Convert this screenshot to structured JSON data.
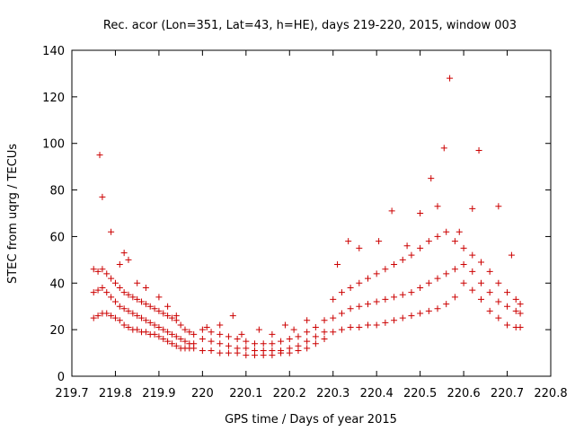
{
  "chart_data": {
    "type": "scatter",
    "title": "Rec. acor (Lon=351, Lat=43, h=HE), days 219-220, 2015, window 003",
    "xlabel": "GPS time / Days of year 2015",
    "ylabel": "STEC from uqrg / TECUs",
    "xlim": [
      219.7,
      220.8
    ],
    "ylim": [
      0,
      140
    ],
    "xticks": [
      "219.7",
      "219.8",
      "219.9",
      "220",
      "220.1",
      "220.2",
      "220.3",
      "220.4",
      "220.5",
      "220.6",
      "220.7",
      "220.8"
    ],
    "yticks": [
      "0",
      "20",
      "40",
      "60",
      "80",
      "100",
      "120",
      "140"
    ],
    "marker": "+",
    "color": "#cc0000",
    "grid": false,
    "series": [
      {
        "x": [
          219.75,
          219.76,
          219.77,
          219.78,
          219.79,
          219.8,
          219.81,
          219.82,
          219.83,
          219.84,
          219.85,
          219.86,
          219.87,
          219.88,
          219.89,
          219.9,
          219.91,
          219.92,
          219.93,
          219.94,
          219.95,
          219.96,
          219.97,
          219.98
        ],
        "y": [
          25,
          26,
          27,
          27,
          26,
          25,
          24,
          22,
          21,
          20,
          20,
          19,
          19,
          18,
          18,
          17,
          16,
          15,
          14,
          13,
          12,
          12,
          12,
          12
        ]
      },
      {
        "x": [
          219.75,
          219.76,
          219.77,
          219.78,
          219.79,
          219.8,
          219.81,
          219.82,
          219.83,
          219.84,
          219.85,
          219.86,
          219.87,
          219.88,
          219.89,
          219.9,
          219.91,
          219.92,
          219.93,
          219.94,
          219.95,
          219.96,
          219.97,
          219.98
        ],
        "y": [
          36,
          37,
          38,
          36,
          34,
          32,
          30,
          29,
          28,
          27,
          26,
          25,
          24,
          23,
          22,
          21,
          20,
          19,
          18,
          17,
          16,
          15,
          14,
          14
        ]
      },
      {
        "x": [
          219.75,
          219.76,
          219.77,
          219.78,
          219.79,
          219.8,
          219.81,
          219.82,
          219.83,
          219.84,
          219.85,
          219.86,
          219.87,
          219.88,
          219.89,
          219.9,
          219.91,
          219.92,
          219.93,
          219.94,
          219.95,
          219.96,
          219.97,
          219.98
        ],
        "y": [
          46,
          45,
          46,
          44,
          42,
          40,
          38,
          36,
          35,
          34,
          33,
          32,
          31,
          30,
          29,
          28,
          27,
          26,
          25,
          24,
          22,
          20,
          19,
          18
        ]
      },
      {
        "x": [
          219.764,
          219.77,
          219.79,
          219.81,
          219.82,
          219.83,
          219.85,
          219.87,
          219.9,
          219.92,
          219.94
        ],
        "y": [
          95,
          77,
          62,
          48,
          53,
          50,
          40,
          38,
          34,
          30,
          26
        ]
      },
      {
        "x": [
          220.0,
          220.02,
          220.04,
          220.06,
          220.08,
          220.1,
          220.12,
          220.14,
          220.16,
          220.18,
          220.2,
          220.22,
          220.24,
          220.26,
          220.28
        ],
        "y": [
          11,
          11,
          10,
          10,
          10,
          9,
          9,
          9,
          9,
          10,
          10,
          11,
          12,
          14,
          16
        ]
      },
      {
        "x": [
          220.0,
          220.02,
          220.04,
          220.06,
          220.08,
          220.1,
          220.12,
          220.14,
          220.16,
          220.18,
          220.2,
          220.22,
          220.24,
          220.26,
          220.28
        ],
        "y": [
          16,
          15,
          14,
          13,
          12,
          12,
          11,
          11,
          11,
          11,
          12,
          13,
          15,
          17,
          19
        ]
      },
      {
        "x": [
          220.0,
          220.02,
          220.04,
          220.06,
          220.08,
          220.1,
          220.12,
          220.14,
          220.16,
          220.18,
          220.2,
          220.22,
          220.24,
          220.26,
          220.28
        ],
        "y": [
          20,
          19,
          18,
          17,
          16,
          15,
          14,
          14,
          14,
          15,
          16,
          17,
          19,
          21,
          24
        ]
      },
      {
        "x": [
          220.01,
          220.04,
          220.07,
          220.09,
          220.13,
          220.16,
          220.19,
          220.21,
          220.24
        ],
        "y": [
          21,
          22,
          26,
          18,
          20,
          18,
          22,
          20,
          24
        ]
      },
      {
        "x": [
          220.3,
          220.32,
          220.34,
          220.36,
          220.38,
          220.4,
          220.42,
          220.44,
          220.46,
          220.48,
          220.5,
          220.52,
          220.54,
          220.56,
          220.58,
          220.6,
          220.62,
          220.64,
          220.66,
          220.68,
          220.7,
          220.72,
          220.73
        ],
        "y": [
          19,
          20,
          21,
          21,
          22,
          22,
          23,
          24,
          25,
          26,
          27,
          28,
          29,
          31,
          34,
          40,
          37,
          33,
          28,
          25,
          22,
          21,
          21
        ]
      },
      {
        "x": [
          220.3,
          220.32,
          220.34,
          220.36,
          220.38,
          220.4,
          220.42,
          220.44,
          220.46,
          220.48,
          220.5,
          220.52,
          220.54,
          220.56,
          220.58,
          220.6,
          220.62,
          220.64,
          220.66,
          220.68,
          220.7,
          220.72,
          220.73
        ],
        "y": [
          25,
          27,
          29,
          30,
          31,
          32,
          33,
          34,
          35,
          36,
          38,
          40,
          42,
          44,
          46,
          48,
          45,
          40,
          36,
          32,
          30,
          28,
          27
        ]
      },
      {
        "x": [
          220.3,
          220.32,
          220.34,
          220.36,
          220.38,
          220.4,
          220.42,
          220.44,
          220.46,
          220.48,
          220.5,
          220.52,
          220.54,
          220.56,
          220.58,
          220.6,
          220.62,
          220.64,
          220.66,
          220.68,
          220.7,
          220.72,
          220.73
        ],
        "y": [
          33,
          36,
          38,
          40,
          42,
          44,
          46,
          48,
          50,
          52,
          55,
          58,
          60,
          62,
          58,
          55,
          52,
          49,
          45,
          40,
          36,
          33,
          31
        ]
      },
      {
        "x": [
          220.31,
          220.335,
          220.36,
          220.405,
          220.435,
          220.47,
          220.5,
          220.525,
          220.54,
          220.555,
          220.568,
          220.59,
          220.62,
          220.635,
          220.68,
          220.71
        ],
        "y": [
          48,
          58,
          55,
          58,
          71,
          56,
          70,
          85,
          73,
          98,
          128,
          62,
          72,
          97,
          73,
          52
        ]
      }
    ]
  }
}
